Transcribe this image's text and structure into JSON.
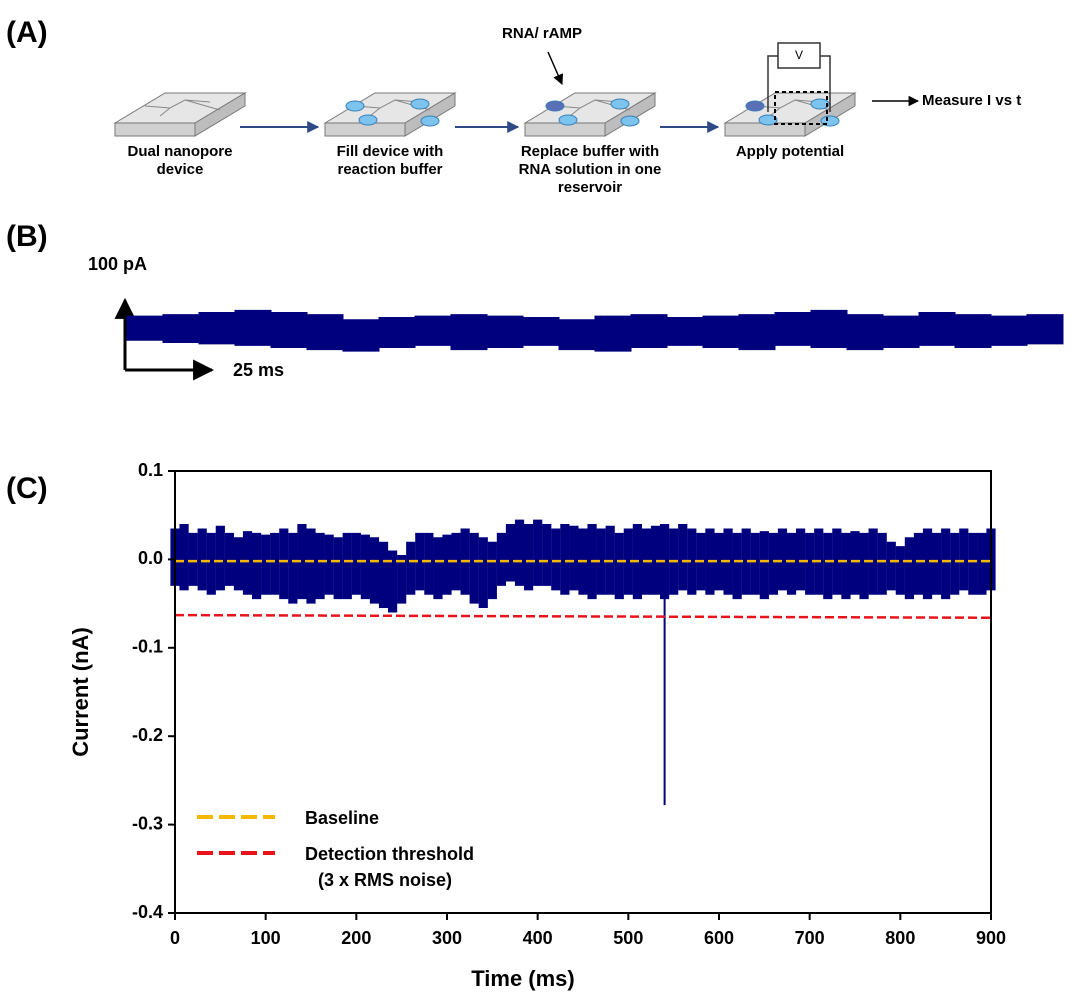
{
  "panel_labels": [
    "(A)",
    "(B)",
    "(C)"
  ],
  "diagram": {
    "steps": [
      {
        "lines": [
          "Dual nanopore",
          "device"
        ]
      },
      {
        "lines": [
          "Fill device with",
          "reaction buffer"
        ]
      },
      {
        "lines": [
          "Replace buffer with",
          "RNA solution in one",
          "reservoir"
        ]
      },
      {
        "lines": [
          "Apply potential"
        ]
      }
    ],
    "annotation": "RNA/ rAMP",
    "box_label": "V",
    "end_label": "Measure I vs t"
  },
  "chart_data": [
    {
      "type": "trace",
      "scale_bar": {
        "y_label": "100 pA",
        "x_label": "25 ms"
      },
      "color": "#00007f",
      "x": [
        0,
        10,
        20,
        30,
        40,
        50,
        60,
        70,
        80,
        90,
        100,
        110,
        120,
        130,
        140,
        150,
        160,
        170,
        180,
        190,
        200,
        210,
        220,
        230,
        240,
        250
      ],
      "upper": [
        20,
        22,
        25,
        28,
        25,
        22,
        15,
        18,
        20,
        22,
        20,
        18,
        15,
        20,
        22,
        18,
        20,
        22,
        25,
        28,
        22,
        20,
        25,
        22,
        20,
        22
      ],
      "lower": [
        -15,
        -18,
        -20,
        -22,
        -25,
        -28,
        -30,
        -25,
        -22,
        -28,
        -25,
        -22,
        -28,
        -30,
        -25,
        -22,
        -25,
        -28,
        -22,
        -25,
        -28,
        -25,
        -22,
        -25,
        -22,
        -20
      ]
    },
    {
      "type": "line",
      "xlabel": "Time (ms)",
      "ylabel": "Current (nA)",
      "xlim": [
        0,
        900
      ],
      "ylim": [
        -0.4,
        0.1
      ],
      "xticks": [
        0,
        100,
        200,
        300,
        400,
        500,
        600,
        700,
        800,
        900
      ],
      "yticks": [
        0.1,
        {
          "value": 0,
          "label": "0.0"
        },
        -0.1,
        -0.2,
        -0.3,
        -0.4
      ],
      "trace": {
        "color": "#00007f",
        "x": [
          0,
          10,
          20,
          30,
          40,
          50,
          60,
          70,
          80,
          90,
          100,
          110,
          120,
          130,
          140,
          150,
          160,
          170,
          180,
          190,
          200,
          210,
          220,
          230,
          240,
          250,
          260,
          270,
          280,
          290,
          300,
          310,
          320,
          330,
          340,
          350,
          360,
          370,
          380,
          390,
          400,
          410,
          420,
          430,
          440,
          450,
          460,
          470,
          480,
          490,
          500,
          510,
          520,
          530,
          540,
          550,
          560,
          570,
          580,
          590,
          600,
          610,
          620,
          630,
          640,
          650,
          660,
          670,
          680,
          690,
          700,
          710,
          720,
          730,
          740,
          750,
          760,
          770,
          780,
          790,
          800,
          810,
          820,
          830,
          840,
          850,
          860,
          870,
          880,
          890,
          900
        ],
        "upper": [
          0.035,
          0.04,
          0.03,
          0.035,
          0.03,
          0.038,
          0.03,
          0.025,
          0.032,
          0.03,
          0.028,
          0.03,
          0.035,
          0.03,
          0.04,
          0.035,
          0.03,
          0.028,
          0.025,
          0.03,
          0.03,
          0.028,
          0.025,
          0.02,
          0.01,
          0.005,
          0.02,
          0.03,
          0.03,
          0.025,
          0.028,
          0.03,
          0.035,
          0.03,
          0.025,
          0.02,
          0.03,
          0.04,
          0.045,
          0.04,
          0.045,
          0.04,
          0.035,
          0.04,
          0.038,
          0.035,
          0.04,
          0.035,
          0.038,
          0.03,
          0.035,
          0.04,
          0.035,
          0.038,
          0.04,
          0.035,
          0.04,
          0.035,
          0.03,
          0.035,
          0.03,
          0.035,
          0.03,
          0.035,
          0.03,
          0.032,
          0.03,
          0.035,
          0.03,
          0.035,
          0.03,
          0.035,
          0.03,
          0.035,
          0.03,
          0.032,
          0.03,
          0.035,
          0.03,
          0.02,
          0.015,
          0.025,
          0.03,
          0.035,
          0.03,
          0.035,
          0.03,
          0.035,
          0.03,
          0.03,
          0.035
        ],
        "lower": [
          -0.03,
          -0.035,
          -0.03,
          -0.035,
          -0.04,
          -0.035,
          -0.03,
          -0.035,
          -0.04,
          -0.045,
          -0.04,
          -0.04,
          -0.045,
          -0.05,
          -0.045,
          -0.05,
          -0.045,
          -0.04,
          -0.045,
          -0.045,
          -0.04,
          -0.045,
          -0.05,
          -0.055,
          -0.06,
          -0.05,
          -0.04,
          -0.035,
          -0.04,
          -0.045,
          -0.04,
          -0.035,
          -0.04,
          -0.05,
          -0.055,
          -0.045,
          -0.03,
          -0.025,
          -0.03,
          -0.035,
          -0.03,
          -0.03,
          -0.035,
          -0.04,
          -0.035,
          -0.04,
          -0.045,
          -0.04,
          -0.04,
          -0.045,
          -0.04,
          -0.045,
          -0.04,
          -0.04,
          -0.045,
          -0.04,
          -0.035,
          -0.04,
          -0.035,
          -0.04,
          -0.035,
          -0.04,
          -0.045,
          -0.04,
          -0.04,
          -0.045,
          -0.04,
          -0.035,
          -0.04,
          -0.035,
          -0.04,
          -0.04,
          -0.045,
          -0.04,
          -0.045,
          -0.04,
          -0.045,
          -0.04,
          -0.04,
          -0.035,
          -0.04,
          -0.045,
          -0.04,
          -0.045,
          -0.04,
          -0.045,
          -0.04,
          -0.035,
          -0.04,
          -0.04,
          -0.035
        ],
        "spike": {
          "x": 540,
          "value": -0.278
        }
      },
      "series": [
        {
          "name": "Baseline",
          "color": "#f5b800",
          "dashed": true,
          "x": [
            0,
            900
          ],
          "values": [
            -0.002,
            -0.002
          ]
        },
        {
          "name": "Detection threshold",
          "name_note": "(3 x RMS noise)",
          "color": "#e8141b",
          "dashed": true,
          "x": [
            0,
            900
          ],
          "values": [
            -0.063,
            -0.066
          ]
        }
      ]
    }
  ]
}
